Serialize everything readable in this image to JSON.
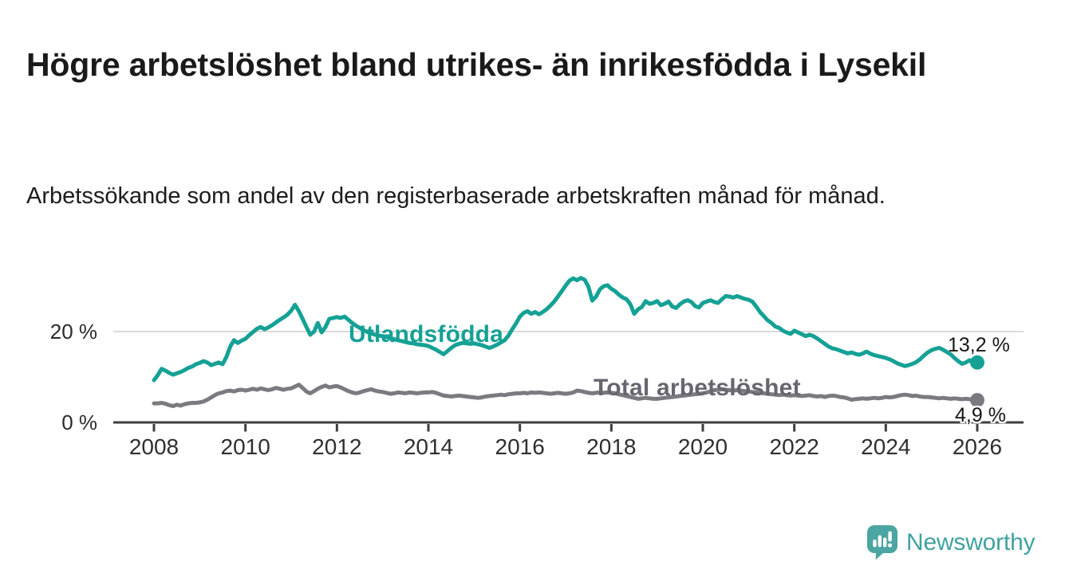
{
  "header": {
    "title": "Högre arbetslöshet bland utrikes- än inrikesfödda i Lysekil",
    "subtitle": "Arbetssökande som andel av den registerbaserade arbetskraften månad för månad."
  },
  "chart_data": {
    "type": "line",
    "title": "Högre arbetslöshet bland utrikes- än inrikesfödda i Lysekil",
    "ylabel": "%",
    "unit": "%",
    "grid": "single horizontal gridline at 20 %",
    "legend_position": "inline labels on lines",
    "x_domain": [
      2008,
      2026
    ],
    "ylim": [
      0,
      33
    ],
    "points_per_year": 12,
    "x_tick_years": [
      2008,
      2010,
      2012,
      2014,
      2016,
      2018,
      2020,
      2022,
      2024,
      2026
    ],
    "y_ticks": [
      {
        "value": 0,
        "label": "0 %"
      },
      {
        "value": 20,
        "label": "20 %"
      }
    ],
    "axis_color": "#3e3e3e",
    "gridline_color": "#dadada",
    "series": [
      {
        "name": "Utlandsfödda",
        "color": "#15a195",
        "end_label": "13,2 %",
        "end_value": 13.2,
        "values": [
          9.3,
          10.4,
          11.8,
          11.4,
          10.9,
          10.5,
          10.8,
          11.1,
          11.5,
          12.0,
          12.3,
          12.8,
          13.1,
          13.5,
          13.2,
          12.6,
          12.9,
          13.2,
          12.8,
          14.4,
          16.7,
          18.1,
          17.5,
          18.0,
          18.4,
          19.2,
          19.9,
          20.6,
          21.0,
          20.5,
          20.9,
          21.4,
          22.0,
          22.6,
          23.1,
          23.7,
          24.6,
          25.9,
          24.5,
          22.8,
          21.0,
          19.3,
          20.0,
          21.9,
          19.8,
          21.0,
          22.8,
          23.0,
          23.2,
          23.0,
          23.3,
          22.6,
          21.9,
          21.3,
          20.8,
          20.3,
          19.9,
          19.6,
          19.3,
          19.1,
          19.0,
          18.8,
          18.6,
          18.3,
          18.1,
          17.9,
          17.7,
          17.5,
          17.4,
          17.2,
          17.1,
          17.0,
          16.8,
          16.4,
          16.0,
          15.5,
          15.0,
          15.7,
          16.4,
          17.0,
          17.3,
          17.5,
          17.4,
          17.3,
          17.4,
          17.2,
          17.0,
          16.7,
          16.4,
          16.7,
          17.1,
          17.6,
          18.1,
          19.1,
          20.5,
          21.8,
          23.3,
          24.1,
          24.5,
          23.9,
          24.3,
          23.8,
          24.3,
          24.9,
          25.7,
          26.6,
          27.7,
          28.9,
          30.1,
          31.2,
          31.7,
          31.3,
          31.8,
          31.4,
          29.8,
          26.8,
          27.7,
          29.3,
          30.0,
          30.2,
          29.4,
          28.9,
          28.1,
          27.5,
          27.1,
          26.0,
          23.9,
          24.9,
          25.4,
          26.7,
          26.1,
          26.3,
          26.7,
          25.8,
          26.1,
          26.6,
          25.5,
          25.2,
          26.0,
          26.6,
          26.9,
          26.5,
          25.6,
          25.3,
          26.3,
          26.6,
          26.9,
          26.5,
          26.3,
          27.1,
          27.8,
          27.7,
          27.5,
          27.8,
          27.5,
          27.2,
          27.0,
          26.6,
          25.5,
          24.3,
          23.4,
          22.5,
          21.9,
          21.1,
          20.8,
          20.2,
          19.8,
          19.5,
          20.2,
          19.8,
          19.4,
          19.0,
          19.3,
          19.0,
          18.5,
          17.9,
          17.3,
          16.7,
          16.3,
          16.1,
          15.8,
          15.5,
          15.2,
          15.4,
          15.1,
          14.9,
          15.2,
          15.6,
          15.1,
          14.8,
          14.6,
          14.4,
          14.2,
          13.9,
          13.5,
          13.0,
          12.7,
          12.4,
          12.6,
          12.9,
          13.3,
          13.9,
          14.7,
          15.4,
          15.9,
          16.2,
          16.4,
          16.0,
          15.5,
          15.0,
          14.2,
          13.5,
          12.9,
          13.2,
          13.7,
          13.0,
          13.2
        ]
      },
      {
        "name": "Total arbetslöshet",
        "color": "#7b7a80",
        "end_label": "4,9 %",
        "end_value": 4.9,
        "values": [
          4.2,
          4.2,
          4.3,
          4.1,
          3.8,
          3.6,
          3.9,
          3.7,
          4.0,
          4.2,
          4.3,
          4.3,
          4.4,
          4.6,
          5.0,
          5.5,
          6.0,
          6.4,
          6.6,
          6.9,
          7.0,
          6.8,
          7.1,
          7.2,
          7.0,
          7.2,
          7.4,
          7.2,
          7.5,
          7.3,
          7.1,
          7.3,
          7.6,
          7.4,
          7.2,
          7.4,
          7.5,
          7.9,
          8.3,
          7.6,
          6.8,
          6.4,
          6.9,
          7.4,
          7.8,
          8.1,
          7.7,
          7.9,
          8.0,
          7.7,
          7.3,
          6.9,
          6.6,
          6.4,
          6.6,
          6.9,
          7.1,
          7.3,
          7.0,
          6.8,
          6.7,
          6.5,
          6.3,
          6.4,
          6.6,
          6.5,
          6.4,
          6.6,
          6.5,
          6.4,
          6.5,
          6.6,
          6.6,
          6.7,
          6.5,
          6.2,
          5.9,
          5.8,
          5.7,
          5.8,
          5.9,
          5.8,
          5.7,
          5.6,
          5.5,
          5.4,
          5.5,
          5.7,
          5.8,
          5.9,
          6.0,
          6.1,
          6.0,
          6.2,
          6.3,
          6.4,
          6.4,
          6.5,
          6.4,
          6.6,
          6.5,
          6.6,
          6.5,
          6.4,
          6.3,
          6.4,
          6.5,
          6.4,
          6.3,
          6.4,
          6.6,
          7.0,
          6.9,
          6.7,
          6.5,
          6.4,
          6.5,
          6.6,
          6.5,
          6.6,
          6.5,
          6.4,
          6.2,
          6.0,
          5.8,
          5.6,
          5.4,
          5.2,
          5.3,
          5.4,
          5.3,
          5.2,
          5.2,
          5.3,
          5.4,
          5.5,
          5.6,
          5.7,
          5.8,
          5.9,
          6.0,
          6.1,
          6.2,
          6.3,
          6.4,
          6.6,
          6.8,
          7.1,
          7.2,
          7.3,
          7.2,
          7.1,
          7.0,
          7.1,
          7.0,
          6.9,
          6.8,
          6.7,
          6.6,
          6.5,
          6.4,
          6.3,
          6.2,
          6.1,
          6.0,
          6.1,
          6.0,
          5.9,
          6.0,
          5.9,
          5.8,
          5.9,
          6.0,
          5.8,
          5.7,
          5.8,
          5.6,
          5.8,
          5.9,
          5.8,
          5.6,
          5.5,
          5.3,
          5.0,
          5.1,
          5.2,
          5.3,
          5.2,
          5.3,
          5.4,
          5.3,
          5.4,
          5.6,
          5.5,
          5.6,
          5.8,
          6.0,
          6.1,
          6.0,
          5.8,
          5.9,
          5.7,
          5.6,
          5.6,
          5.5,
          5.4,
          5.3,
          5.4,
          5.3,
          5.2,
          5.3,
          5.2,
          5.1,
          5.2,
          5.1,
          5.0,
          4.9
        ]
      }
    ]
  },
  "footer": {
    "brand": "Newsworthy",
    "brand_color": "#3fa2a0",
    "logo_icon": "speech-bubble-bar-chart-exclamation-icon"
  }
}
